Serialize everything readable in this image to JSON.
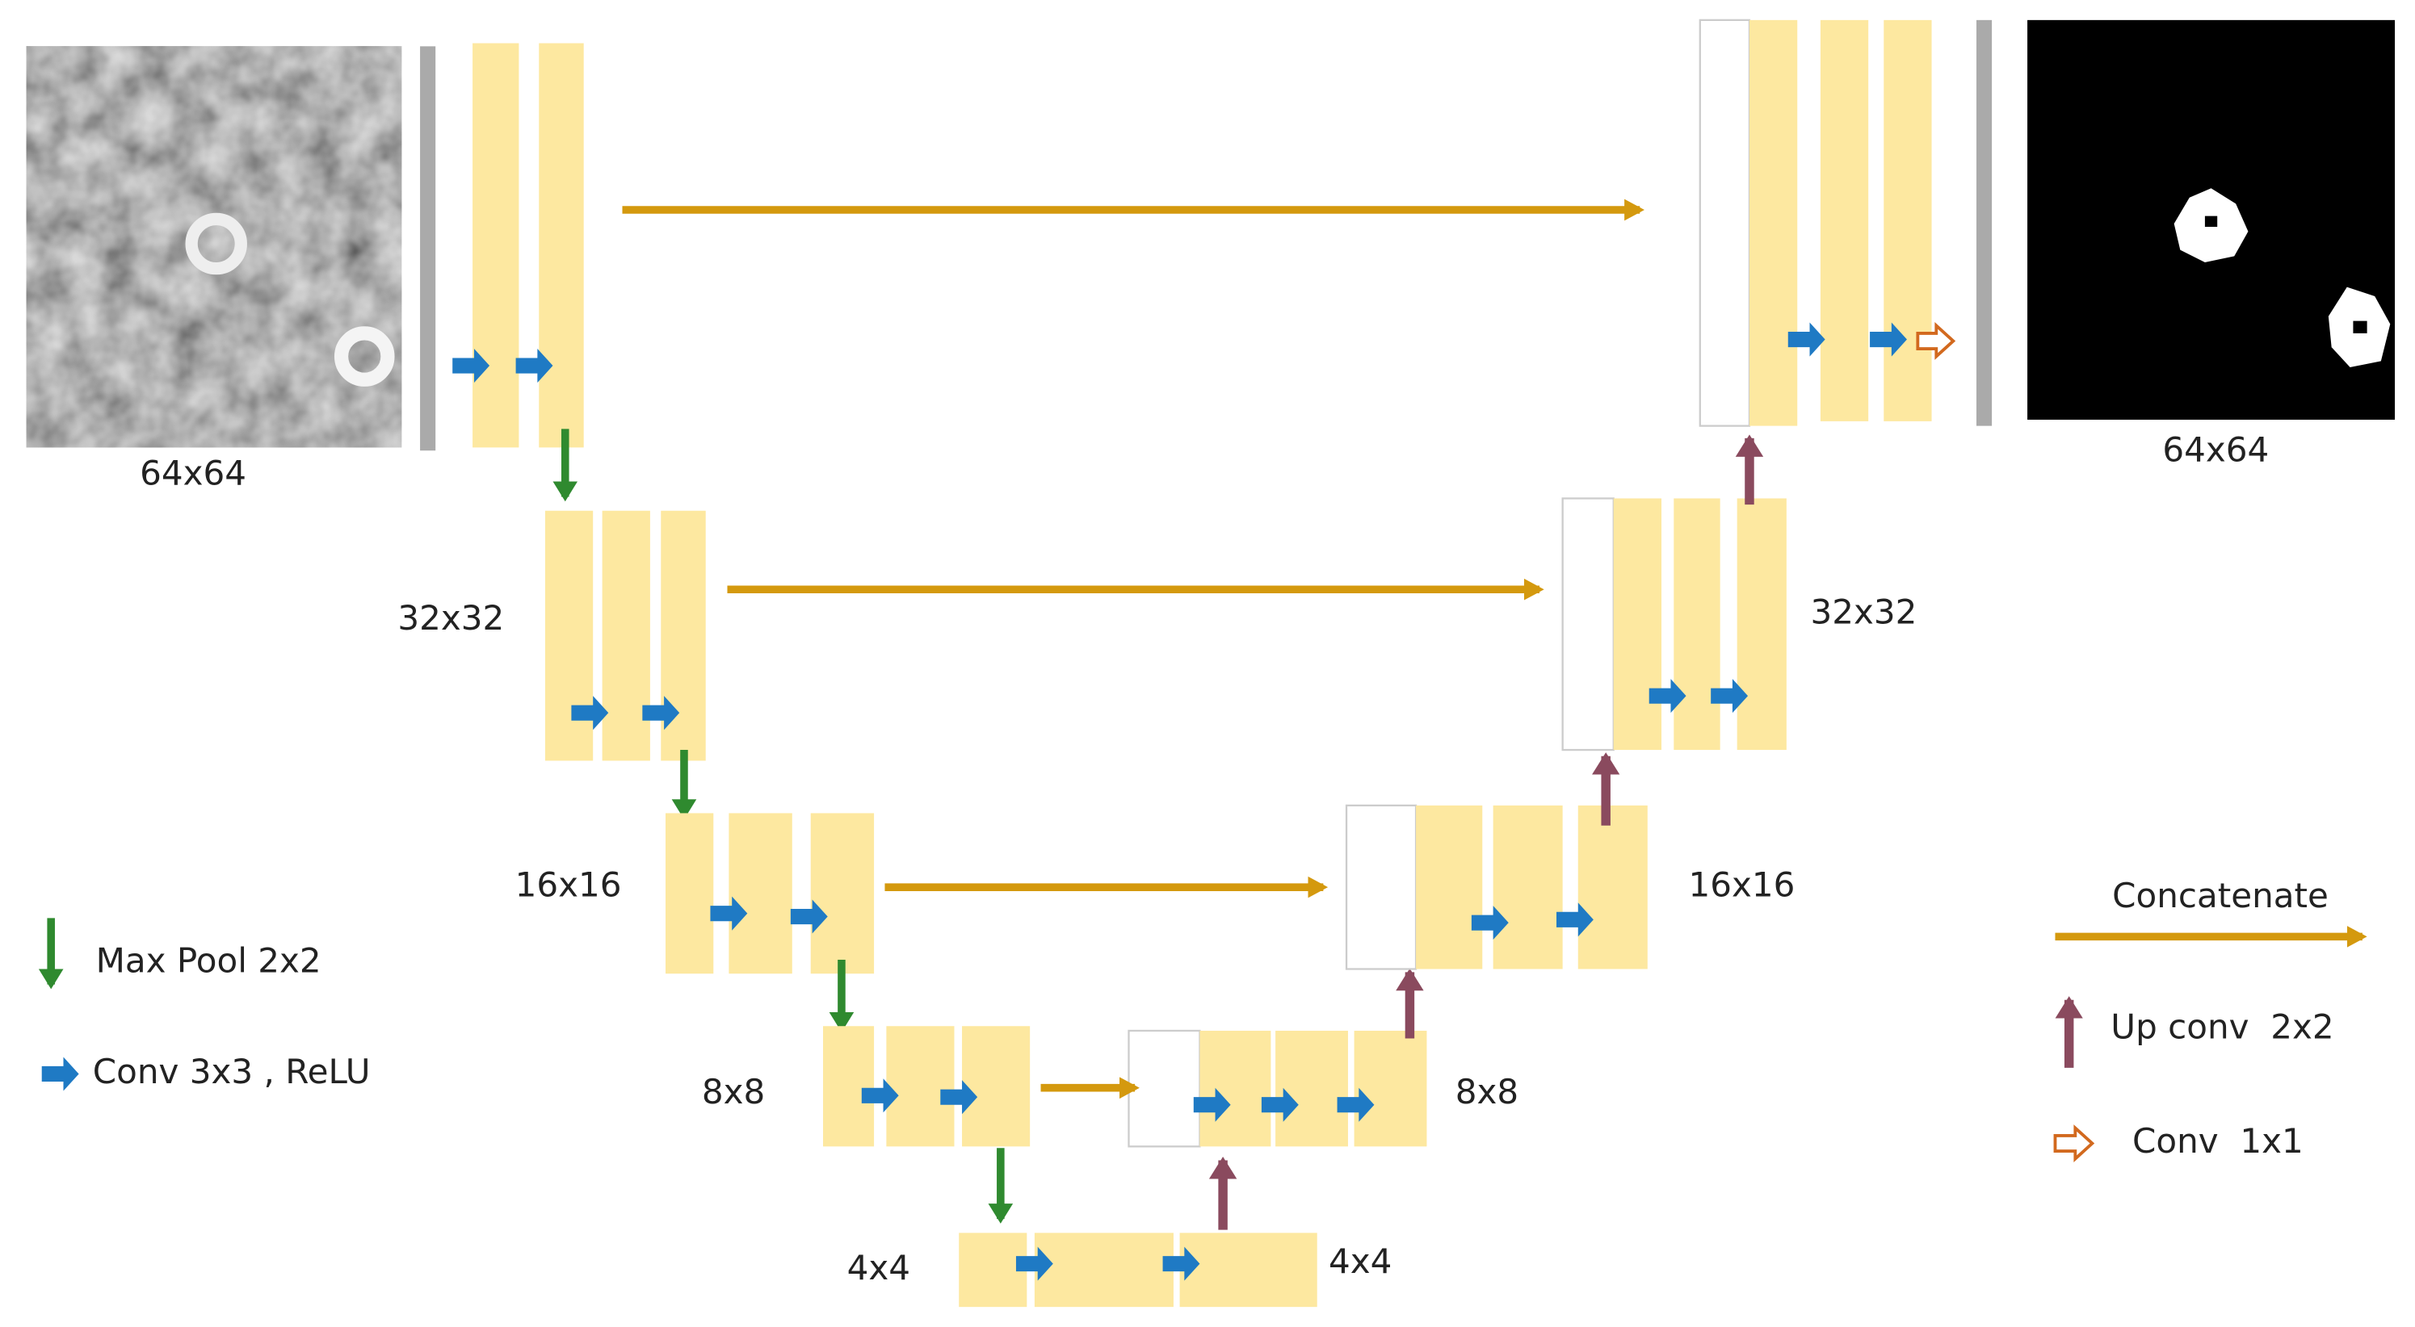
{
  "encoder_labels": [
    "64x64",
    "32x32",
    "16x16",
    "8x8",
    "4x4"
  ],
  "decoder_labels": [
    "4x4",
    "8x8",
    "16x16",
    "32x32"
  ],
  "output_label": "64x64",
  "legend": [
    "Max Pool 2x2",
    "Conv 3x3 , ReLU",
    "Concatenate",
    "Up conv  2x2",
    "Conv  1x1"
  ]
}
